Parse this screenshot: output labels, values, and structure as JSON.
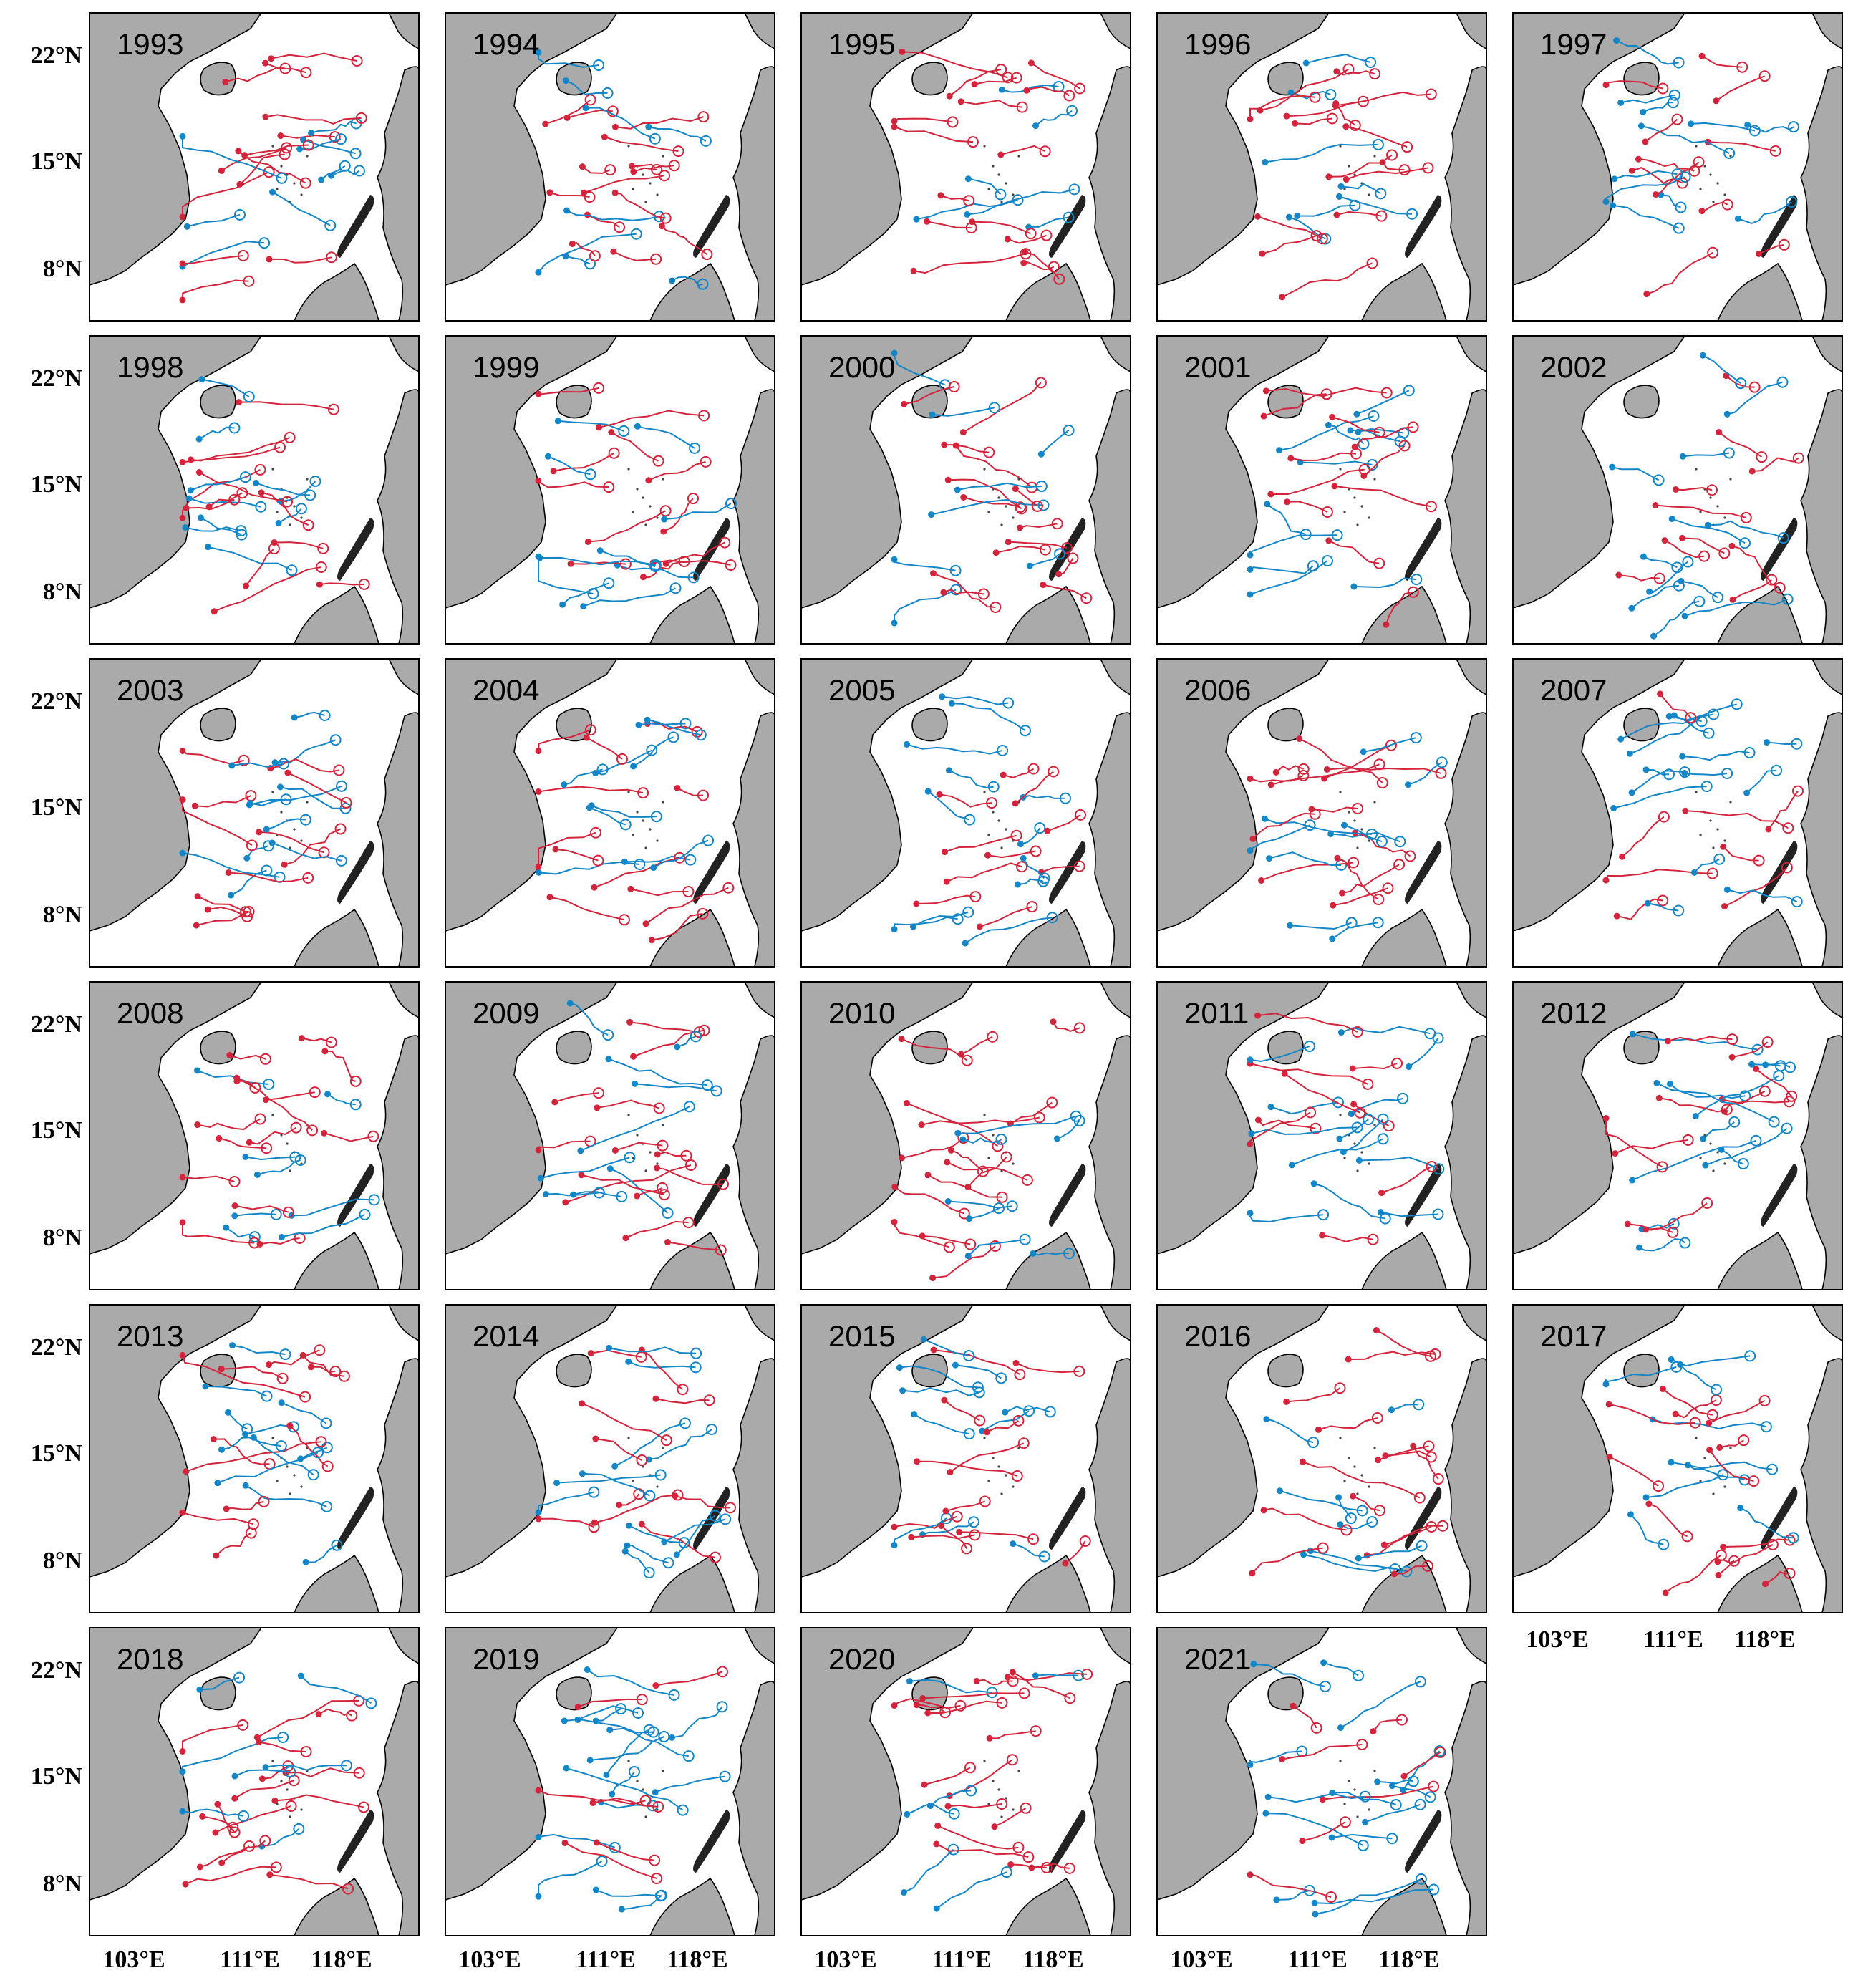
{
  "figure": {
    "years": [
      "1993",
      "1994",
      "1995",
      "1996",
      "1997",
      "1998",
      "1999",
      "2000",
      "2001",
      "2002",
      "2003",
      "2004",
      "2005",
      "2006",
      "2007",
      "2008",
      "2009",
      "2010",
      "2011",
      "2012",
      "2013",
      "2014",
      "2015",
      "2016",
      "2017",
      "2018",
      "2019",
      "2020",
      "2021"
    ],
    "lat_labels": [
      "22°N",
      "15°N",
      "8°N"
    ],
    "lon_labels": [
      "103°E",
      "111°E",
      "118°E"
    ]
  },
  "colors": {
    "land": "#aaaaaa",
    "sea": "#ffffff",
    "track_warm": "#d4243c",
    "track_cold": "#1386c8",
    "frame": "#000000"
  },
  "legend_semantics": {
    "open_circle": "track start",
    "filled_dot": "track end"
  }
}
